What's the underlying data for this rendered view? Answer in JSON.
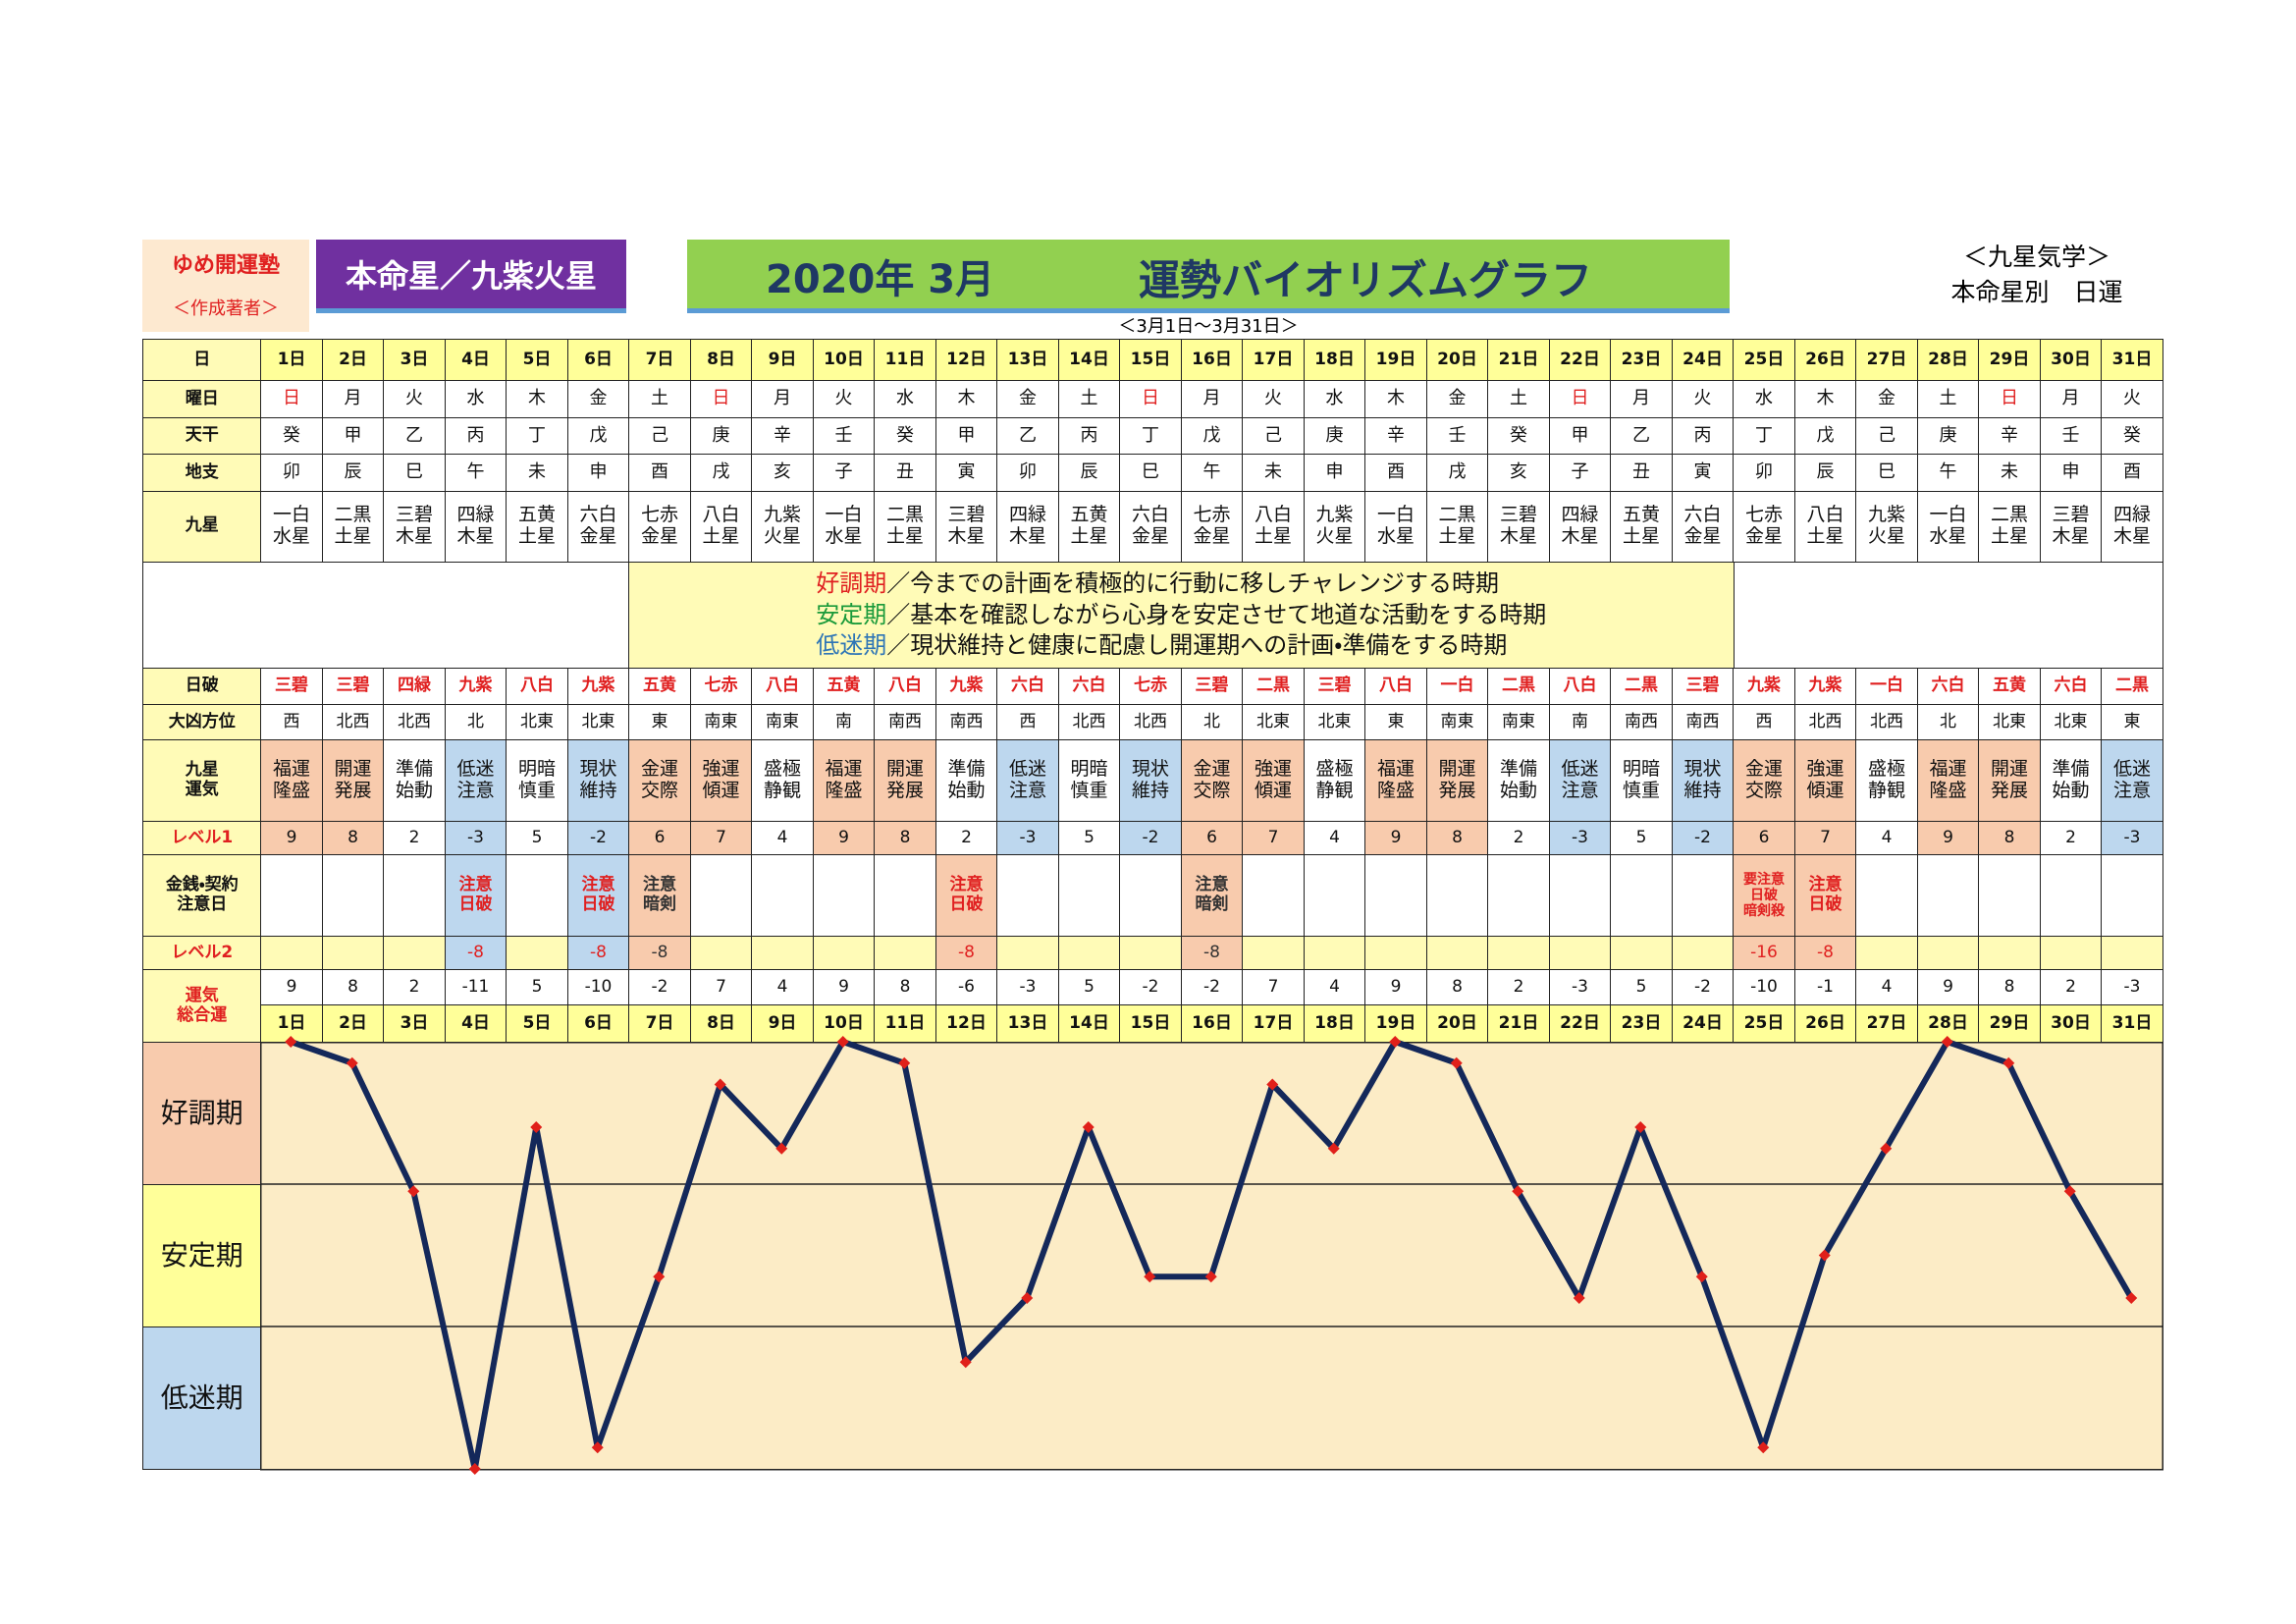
{
  "header": {
    "org": "ゆめ開運塾",
    "author": "＜作成著者＞",
    "star": "本命星／九紫火星",
    "year_month": "2020年 3月",
    "title": "運勢バイオリズムグラフ",
    "period": "＜3月1日～3月31日＞",
    "school": "＜九星気学＞",
    "kind": "本命星別　日運"
  },
  "table": {
    "row_labels": {
      "day": "日",
      "weekday": "曜日",
      "stem": "天干",
      "branch": "地支",
      "star": "九星",
      "day_break": "日破",
      "bad_direction": "大凶方位",
      "fortune": "九星\n運気",
      "level1": "レベル1",
      "money": "金銭・契約\n注意日",
      "level2": "レベル2",
      "total": "運気\n総合運"
    },
    "weekdays": [
      "日",
      "月",
      "火",
      "水",
      "木",
      "金",
      "土",
      "日",
      "月",
      "火",
      "水",
      "木",
      "金",
      "土",
      "日",
      "月",
      "火",
      "水",
      "木",
      "金",
      "土",
      "日",
      "月",
      "火",
      "水",
      "木",
      "金",
      "土",
      "日",
      "月",
      "火"
    ],
    "stems": [
      "癸",
      "甲",
      "乙",
      "丙",
      "丁",
      "戊",
      "己",
      "庚",
      "辛",
      "壬",
      "癸",
      "甲",
      "乙",
      "丙",
      "丁",
      "戊",
      "己",
      "庚",
      "辛",
      "壬",
      "癸",
      "甲",
      "乙",
      "丙",
      "丁",
      "戊",
      "己",
      "庚",
      "辛",
      "壬",
      "癸"
    ],
    "branches": [
      "卯",
      "辰",
      "巳",
      "午",
      "未",
      "申",
      "酉",
      "戌",
      "亥",
      "子",
      "丑",
      "寅",
      "卯",
      "辰",
      "巳",
      "午",
      "未",
      "申",
      "酉",
      "戌",
      "亥",
      "子",
      "丑",
      "寅",
      "卯",
      "辰",
      "巳",
      "午",
      "未",
      "申",
      "酉"
    ],
    "stars": [
      "一白\n水星",
      "二黒\n土星",
      "三碧\n木星",
      "四緑\n木星",
      "五黄\n土星",
      "六白\n金星",
      "七赤\n金星",
      "八白\n土星",
      "九紫\n火星",
      "一白\n水星",
      "二黒\n土星",
      "三碧\n木星",
      "四緑\n木星",
      "五黄\n土星",
      "六白\n金星",
      "七赤\n金星",
      "八白\n土星",
      "九紫\n火星",
      "一白\n水星",
      "二黒\n土星",
      "三碧\n木星",
      "四緑\n木星",
      "五黄\n土星",
      "六白\n金星",
      "七赤\n金星",
      "八白\n土星",
      "九紫\n火星",
      "一白\n水星",
      "二黒\n土星",
      "三碧\n木星",
      "四緑\n木星"
    ],
    "legend": [
      {
        "term": "好調期",
        "text": "／今までの計画を積極的に行動に移しチャレンジする時期",
        "color": "#e02020"
      },
      {
        "term": "安定期",
        "text": "／基本を確認しながら心身を安定させて地道な活動をする時期",
        "color": "#1a9a3a"
      },
      {
        "term": "低迷期",
        "text": "／現状維持と健康に配慮し開運期への計画・準備をする時期",
        "color": "#2e75b6"
      }
    ],
    "day_break": [
      "三碧",
      "三碧",
      "四緑",
      "九紫",
      "八白",
      "九紫",
      "五黄",
      "七赤",
      "八白",
      "五黄",
      "八白",
      "九紫",
      "六白",
      "六白",
      "七赤",
      "三碧",
      "二黒",
      "三碧",
      "八白",
      "一白",
      "二黒",
      "八白",
      "二黒",
      "三碧",
      "九紫",
      "九紫",
      "一白",
      "六白",
      "五黄",
      "六白",
      "二黒"
    ],
    "bad_direction": [
      "西",
      "北西",
      "北西",
      "北",
      "北東",
      "北東",
      "東",
      "南東",
      "南東",
      "南",
      "南西",
      "南西",
      "西",
      "北西",
      "北西",
      "北",
      "北東",
      "北東",
      "東",
      "南東",
      "南東",
      "南",
      "南西",
      "南西",
      "西",
      "北西",
      "北西",
      "北",
      "北東",
      "北東",
      "東"
    ],
    "fortune": [
      "福運\n隆盛",
      "開運\n発展",
      "準備\n始動",
      "低迷\n注意",
      "明暗\n慎重",
      "現状\n維持",
      "金運\n交際",
      "強運\n傾運",
      "盛極\n静観",
      "福運\n隆盛",
      "開運\n発展",
      "準備\n始動",
      "低迷\n注意",
      "明暗\n慎重",
      "現状\n維持",
      "金運\n交際",
      "強運\n傾運",
      "盛極\n静観",
      "福運\n隆盛",
      "開運\n発展",
      "準備\n始動",
      "低迷\n注意",
      "明暗\n慎重",
      "現状\n維持",
      "金運\n交際",
      "強運\n傾運",
      "盛極\n静観",
      "福運\n隆盛",
      "開運\n発展",
      "準備\n始動",
      "低迷\n注意"
    ],
    "level1": [
      9,
      8,
      2,
      -3,
      5,
      -2,
      6,
      7,
      4,
      9,
      8,
      2,
      -3,
      5,
      -2,
      6,
      7,
      4,
      9,
      8,
      2,
      -3,
      5,
      -2,
      6,
      7,
      4,
      9,
      8,
      2,
      -3
    ],
    "money_notes": [
      null,
      null,
      null,
      "注意\n日破",
      null,
      "注意\n日破",
      "注意\n暗剣",
      null,
      null,
      null,
      null,
      "注意\n日破",
      null,
      null,
      null,
      "注意\n暗剣",
      null,
      null,
      null,
      null,
      null,
      null,
      null,
      null,
      "要注意\n日破\n暗剣殺",
      "注意\n日破",
      null,
      null,
      null,
      null,
      null
    ],
    "level2": [
      null,
      null,
      null,
      -8,
      null,
      -8,
      -8,
      null,
      null,
      null,
      null,
      -8,
      null,
      null,
      null,
      -8,
      null,
      null,
      null,
      null,
      null,
      null,
      null,
      null,
      -16,
      -8,
      null,
      null,
      null,
      null,
      null
    ]
  },
  "chart_data": {
    "type": "line",
    "categories": [
      "1日",
      "2日",
      "3日",
      "4日",
      "5日",
      "6日",
      "7日",
      "8日",
      "9日",
      "10日",
      "11日",
      "12日",
      "13日",
      "14日",
      "15日",
      "16日",
      "17日",
      "18日",
      "19日",
      "20日",
      "21日",
      "22日",
      "23日",
      "24日",
      "25日",
      "26日",
      "27日",
      "28日",
      "29日",
      "30日",
      "31日"
    ],
    "values": [
      9,
      8,
      2,
      -11,
      5,
      -10,
      -2,
      7,
      4,
      9,
      8,
      -6,
      -3,
      5,
      -2,
      -2,
      7,
      4,
      9,
      8,
      2,
      -3,
      5,
      -2,
      -10,
      -1,
      4,
      9,
      8,
      2,
      -3
    ],
    "ylim": [
      -11,
      9
    ],
    "bands": [
      "好調期",
      "安定期",
      "低迷期"
    ],
    "color": "#14285a",
    "marker_color": "#e0201a"
  }
}
